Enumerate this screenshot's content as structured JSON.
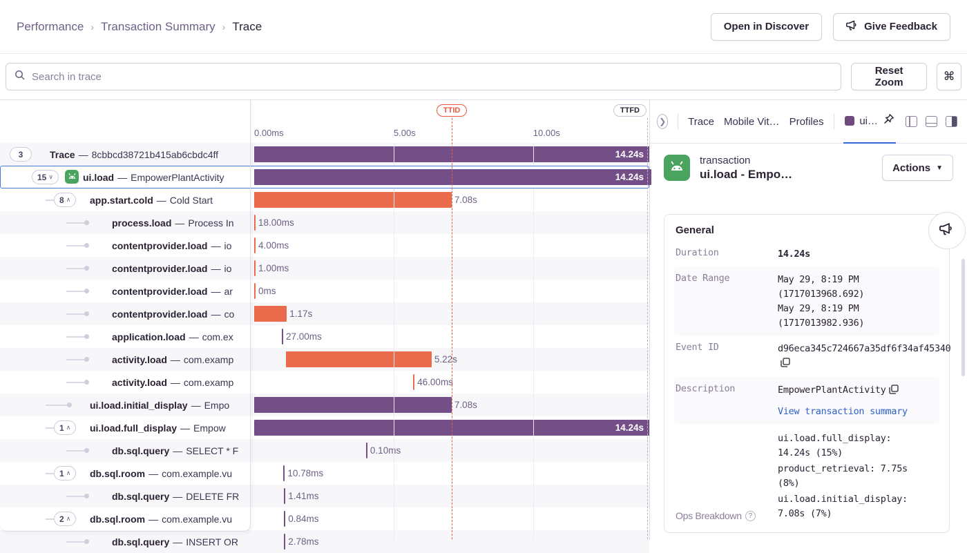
{
  "header": {
    "breadcrumb": [
      "Performance",
      "Transaction Summary",
      "Trace"
    ],
    "open_in_discover": "Open in Discover",
    "give_feedback": "Give Feedback"
  },
  "toolbar": {
    "search_placeholder": "Search in trace",
    "reset_zoom": "Reset Zoom",
    "shortcut": "⌘"
  },
  "timeline": {
    "ttid_label": "TTID",
    "ttfd_label": "TTFD",
    "ttid_s": 7.08,
    "ticks": [
      {
        "label": "0.00ms",
        "s": 0
      },
      {
        "label": "5.00s",
        "s": 5
      },
      {
        "label": "10.00s",
        "s": 10
      }
    ]
  },
  "chart_data": {
    "type": "waterfall-spans",
    "xlabel": "time",
    "x_ticks": [
      "0.00ms",
      "5.00s",
      "10.00s"
    ],
    "markers": {
      "TTID": 7.08,
      "TTFD": 14.24
    },
    "rows": [
      {
        "op": "Trace",
        "desc": "8cbbcd38721b415ab6cbdc4ff",
        "count": "3",
        "chevron": null,
        "depth": 0,
        "dot": false,
        "icon": null,
        "start_s": 0,
        "dur_s": 14.24,
        "color": "purple",
        "duration_label": "14.24s",
        "inside": true,
        "shade": true,
        "selected": false
      },
      {
        "op": "ui.load",
        "desc": "EmpowerPlantActivity",
        "count": "15",
        "chevron": "down",
        "depth": 1,
        "dot": false,
        "icon": "android",
        "start_s": 0,
        "dur_s": 14.24,
        "color": "purple",
        "duration_label": "14.24s",
        "inside": true,
        "shade": false,
        "selected": true
      },
      {
        "op": "app.start.cold",
        "desc": "Cold Start",
        "count": "8",
        "chevron": "up",
        "depth": 2,
        "dot": false,
        "icon": null,
        "start_s": 0,
        "dur_s": 7.08,
        "color": "orange",
        "duration_label": "7.08s",
        "inside": false,
        "shade": false,
        "selected": false
      },
      {
        "op": "process.load",
        "desc": "Process In",
        "count": null,
        "chevron": null,
        "depth": 3,
        "dot": true,
        "icon": null,
        "start_s": 0,
        "dur_s": 0.018,
        "color": "orange",
        "duration_label": "18.00ms",
        "inside": false,
        "shade": true,
        "selected": false
      },
      {
        "op": "contentprovider.load",
        "desc": "io",
        "count": null,
        "chevron": null,
        "depth": 3,
        "dot": true,
        "icon": null,
        "start_s": 0,
        "dur_s": 0.004,
        "color": "orange",
        "duration_label": "4.00ms",
        "inside": false,
        "shade": false,
        "selected": false
      },
      {
        "op": "contentprovider.load",
        "desc": "io",
        "count": null,
        "chevron": null,
        "depth": 3,
        "dot": true,
        "icon": null,
        "start_s": 0,
        "dur_s": 0.001,
        "color": "orange",
        "duration_label": "1.00ms",
        "inside": false,
        "shade": true,
        "selected": false
      },
      {
        "op": "contentprovider.load",
        "desc": "ar",
        "count": null,
        "chevron": null,
        "depth": 3,
        "dot": true,
        "icon": null,
        "start_s": 0,
        "dur_s": 0,
        "color": "orange",
        "duration_label": "0ms",
        "inside": false,
        "shade": false,
        "selected": false
      },
      {
        "op": "contentprovider.load",
        "desc": "co",
        "count": null,
        "chevron": null,
        "depth": 3,
        "dot": true,
        "icon": null,
        "start_s": 0,
        "dur_s": 1.17,
        "color": "orange",
        "duration_label": "1.17s",
        "inside": false,
        "shade": true,
        "selected": false
      },
      {
        "op": "application.load",
        "desc": "com.ex",
        "count": null,
        "chevron": null,
        "depth": 3,
        "dot": true,
        "icon": null,
        "start_s": 0.99,
        "dur_s": 0.027,
        "color": "purple",
        "duration_label": "27.00ms",
        "inside": false,
        "shade": false,
        "selected": false
      },
      {
        "op": "activity.load",
        "desc": "com.examp",
        "count": null,
        "chevron": null,
        "depth": 3,
        "dot": true,
        "icon": null,
        "start_s": 1.14,
        "dur_s": 5.22,
        "color": "orange",
        "duration_label": "5.22s",
        "inside": false,
        "shade": true,
        "selected": false
      },
      {
        "op": "activity.load",
        "desc": "com.examp",
        "count": null,
        "chevron": null,
        "depth": 3,
        "dot": true,
        "icon": null,
        "start_s": 5.7,
        "dur_s": 0.046,
        "color": "orange",
        "duration_label": "46.00ms",
        "inside": false,
        "shade": false,
        "selected": false
      },
      {
        "op": "ui.load.initial_display",
        "desc": "Empo",
        "count": null,
        "chevron": null,
        "depth": 2,
        "dot": true,
        "icon": null,
        "start_s": 0,
        "dur_s": 7.08,
        "color": "purple",
        "duration_label": "7.08s",
        "inside": false,
        "shade": true,
        "selected": false
      },
      {
        "op": "ui.load.full_display",
        "desc": "Empow",
        "count": "1",
        "chevron": "up",
        "depth": 2,
        "dot": false,
        "icon": null,
        "start_s": 0,
        "dur_s": 14.24,
        "color": "purple",
        "duration_label": "14.24s",
        "inside": true,
        "shade": false,
        "selected": false
      },
      {
        "op": "db.sql.query",
        "desc": "SELECT * F",
        "count": null,
        "chevron": null,
        "depth": 3,
        "dot": true,
        "icon": null,
        "start_s": 4.01,
        "dur_s": 0.0001,
        "color": "purple",
        "duration_label": "0.10ms",
        "inside": false,
        "shade": true,
        "selected": false
      },
      {
        "op": "db.sql.room",
        "desc": "com.example.vu",
        "count": "1",
        "chevron": "up",
        "depth": 2,
        "dot": false,
        "icon": null,
        "start_s": 1.05,
        "dur_s": 0.01078,
        "color": "purple",
        "duration_label": "10.78ms",
        "inside": false,
        "shade": false,
        "selected": false
      },
      {
        "op": "db.sql.query",
        "desc": "DELETE FR",
        "count": null,
        "chevron": null,
        "depth": 3,
        "dot": true,
        "icon": null,
        "start_s": 1.07,
        "dur_s": 0.00141,
        "color": "purple",
        "duration_label": "1.41ms",
        "inside": false,
        "shade": true,
        "selected": false
      },
      {
        "op": "db.sql.room",
        "desc": "com.example.vu",
        "count": "2",
        "chevron": "up",
        "depth": 2,
        "dot": false,
        "icon": null,
        "start_s": 1.07,
        "dur_s": 0.00084,
        "color": "purple",
        "duration_label": "0.84ms",
        "inside": false,
        "shade": false,
        "selected": false
      },
      {
        "op": "db.sql.query",
        "desc": "INSERT OR",
        "count": null,
        "chevron": null,
        "depth": 3,
        "dot": true,
        "icon": null,
        "start_s": 1.07,
        "dur_s": 0.0028,
        "color": "purple",
        "duration_label": "2.78ms",
        "inside": false,
        "shade": true,
        "selected": false
      }
    ],
    "colors": {
      "purple": "#744e86",
      "orange": "#ea6c4d",
      "ttid_line": "#e0604a",
      "selected_border": "#4a7bd9"
    }
  },
  "panel": {
    "tabs": [
      "Trace",
      "Mobile Vit…",
      "Profiles"
    ],
    "active_tab": "ui…",
    "transaction": {
      "kicker": "transaction",
      "title": "ui.load - Empo…",
      "actions_label": "Actions"
    },
    "general": {
      "heading": "General",
      "fields": [
        {
          "key": "Duration",
          "lines": [
            "14.24s"
          ],
          "bold": true,
          "shaded": false,
          "copy": false,
          "link": null,
          "help": false,
          "sans_key": false,
          "bottom": false
        },
        {
          "key": "Date Range",
          "lines": [
            "May 29, 8:19 PM",
            "(1717013968.692)",
            "May 29, 8:19 PM",
            "(1717013982.936)"
          ],
          "bold": false,
          "shaded": true,
          "copy": false,
          "link": null,
          "help": false,
          "sans_key": false,
          "bottom": false
        },
        {
          "key": "Event ID",
          "lines": [
            "d96eca345c724667a35df6f34af45340"
          ],
          "bold": false,
          "shaded": false,
          "copy": true,
          "link": null,
          "help": false,
          "sans_key": false,
          "bottom": false
        },
        {
          "key": "Description",
          "lines": [
            "EmpowerPlantActivity"
          ],
          "bold": false,
          "shaded": true,
          "copy": true,
          "link": "View transaction summary",
          "help": false,
          "sans_key": false,
          "bottom": false
        },
        {
          "key": "Ops Breakdown",
          "lines": [
            "ui.load.full_display: 14.24s (15%)",
            "product_retrieval: 7.75s (8%)",
            "ui.load.initial_display: 7.08s (7%)"
          ],
          "bold": false,
          "shaded": false,
          "copy": false,
          "link": null,
          "help": true,
          "sans_key": true,
          "bottom": true
        }
      ]
    }
  }
}
